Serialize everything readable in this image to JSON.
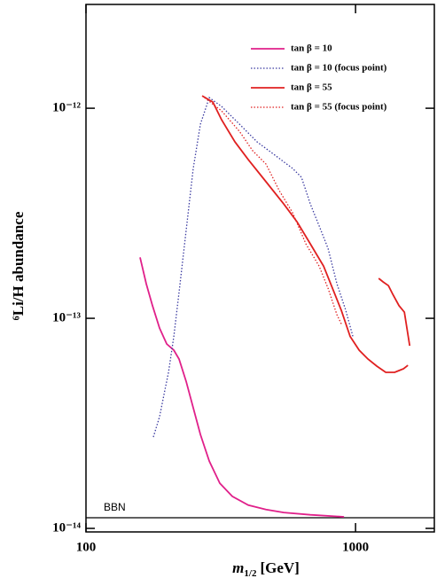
{
  "chart_data": {
    "type": "line",
    "x_label": {
      "symbol": "m",
      "subscript": "1/2",
      "unit": "[GeV]"
    },
    "y_label": "⁶Li/H  abundance",
    "log_x": true,
    "log_y": true,
    "xlim": [
      100,
      1960
    ],
    "ylim": [
      9.62e-15,
      3.12e-12
    ],
    "xticks": [
      100,
      1000
    ],
    "yticks": [
      {
        "value": 1e-14,
        "label": "10⁻¹⁴"
      },
      {
        "value": 1e-13,
        "label": "10⁻¹³"
      },
      {
        "value": 1e-12,
        "label": "10⁻¹²"
      }
    ],
    "legend": "upper right",
    "reference_lines": [
      {
        "value": 1.124e-14,
        "label": "BBN",
        "color": "#000000"
      }
    ],
    "series": [
      {
        "name": "tan β = 10",
        "color": "#e0208a",
        "style": "solid",
        "x": [
          158.7,
          167.3,
          176.5,
          187.5,
          199.3,
          211.7,
          221.5,
          235.3,
          250,
          265.7,
          286.6,
          313.8,
          349,
          400,
          465.5,
          541.6,
          679.6,
          906
        ],
        "values": [
          1.95e-13,
          1.46e-13,
          1.15e-13,
          8.98e-14,
          7.55e-14,
          7.05e-14,
          6.4e-14,
          5.01e-14,
          3.75e-14,
          2.8e-14,
          2.09e-14,
          1.64e-14,
          1.42e-14,
          1.29e-14,
          1.23e-14,
          1.19e-14,
          1.16e-14,
          1.135e-14
        ]
      },
      {
        "name": "tan β = 10 (focus point)",
        "color": "#3a3aa0",
        "style": "dotted",
        "x": [
          177.8,
          187.5,
          196.2,
          202.3,
          211.7,
          221.5,
          235.3,
          250,
          265.7,
          286.6,
          318.6,
          370.8,
          431.4,
          502.1,
          584.1,
          630,
          679.6,
          733.2,
          790.7,
          852.8,
          920,
          977.5
        ],
        "values": [
          2.72e-14,
          3.4e-14,
          4.55e-14,
          5.53e-14,
          8.2e-14,
          1.33e-13,
          2.62e-13,
          5.17e-13,
          8.4e-13,
          1.124e-12,
          1.02e-12,
          8.4e-13,
          6.91e-13,
          5.98e-13,
          5.17e-13,
          4.69e-13,
          3.5e-13,
          2.75e-13,
          2.15e-13,
          1.46e-13,
          1.09e-13,
          8.2e-14
        ]
      },
      {
        "name": "tan β = 55",
        "color": "#e02020",
        "style": "solid",
        "x": [
          269.8,
          295.4,
          318.6,
          357,
          400,
          465.5,
          541.6,
          606.6,
          679.6,
          761.4,
          821.2,
          886,
          955,
          1031,
          1112,
          1199,
          1294,
          1396,
          1449,
          1506,
          1564,
          null,
          1218,
          1265,
          1324,
          1375,
          1449,
          1517,
          1588
        ],
        "values": [
          1.146e-12,
          1.07e-12,
          8.81e-13,
          6.91e-13,
          5.69e-13,
          4.47e-13,
          3.5e-13,
          2.88e-13,
          2.26e-13,
          1.77e-13,
          1.39e-13,
          1.09e-13,
          8.2e-14,
          7.05e-14,
          6.4e-14,
          5.92e-14,
          5.53e-14,
          5.53e-14,
          5.64e-14,
          5.75e-14,
          5.97e-14,
          null,
          1.55e-13,
          1.49e-13,
          1.43e-13,
          1.3e-13,
          1.15e-13,
          1.07e-13,
          7.4e-14
        ]
      },
      {
        "name": "tan β = 55 (focus point)",
        "color": "#e02020",
        "style": "dotted",
        "x": [
          269.8,
          318.6,
          370.8,
          415.4,
          465.5,
          521.4,
          584.1,
          654.4,
          733.2,
          790.7,
          852.8,
          886
        ],
        "values": [
          1.146e-12,
          9.71e-13,
          7.77e-13,
          6.27e-13,
          5.42e-13,
          4.05e-13,
          3.18e-13,
          2.26e-13,
          1.77e-13,
          1.39e-13,
          1.04e-13,
          9.4e-14
        ]
      }
    ]
  }
}
